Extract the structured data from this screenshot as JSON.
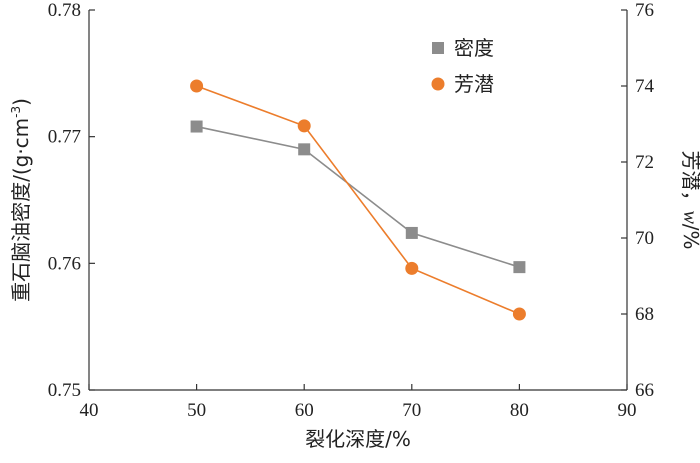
{
  "chart_data": {
    "type": "line",
    "x": [
      50,
      60,
      70,
      80
    ],
    "xlim": [
      40,
      90
    ],
    "xticks": [
      "40",
      "50",
      "60",
      "70",
      "80",
      "90"
    ],
    "xlabel": "裂化深度/%",
    "ylabel_left": "重石脑油密度/(g·cm",
    "ylabel_left_sup": "-3",
    "ylabel_left_close": ")",
    "ylim_left": [
      0.75,
      0.78
    ],
    "yticks_left": [
      "0.75",
      "0.76",
      "0.77",
      "0.78"
    ],
    "ylabel_right": "芳潜，",
    "ylabel_right_var": "w",
    "ylabel_right_unit": "/%",
    "ylim_right": [
      66,
      76
    ],
    "yticks_right": [
      "66",
      "68",
      "70",
      "72",
      "74",
      "76"
    ],
    "legend_position": "top-right",
    "series": [
      {
        "name": "密度",
        "axis": "left",
        "marker": "square",
        "color": "#8c8c8c",
        "values": [
          0.7708,
          0.769,
          0.7624,
          0.7597
        ]
      },
      {
        "name": "芳潜",
        "axis": "right",
        "marker": "circle",
        "color": "#ec7d2c",
        "values": [
          74.0,
          72.95,
          69.2,
          68.0
        ]
      }
    ]
  }
}
